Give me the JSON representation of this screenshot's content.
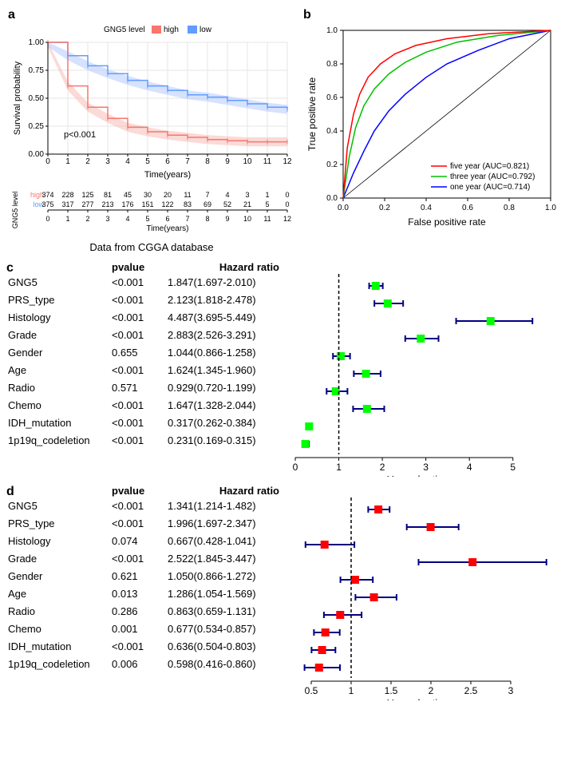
{
  "panel_a": {
    "label": "a",
    "legend_title": "GNG5 level",
    "legend": [
      "high",
      "low"
    ],
    "colors": {
      "high": "#f8766d",
      "low": "#619cff"
    },
    "band_colors": {
      "high": "#f8b5b0",
      "low": "#b0c6ff"
    },
    "ylabel": "Survival probability",
    "xlabel": "Time(years)",
    "pvalue": "p<0.001",
    "y_ticks": [
      "0.00",
      "0.25",
      "0.50",
      "0.75",
      "1.00"
    ],
    "x_ticks": [
      "0",
      "1",
      "2",
      "3",
      "4",
      "5",
      "6",
      "7",
      "8",
      "9",
      "10",
      "11",
      "12"
    ],
    "km_high": [
      1.0,
      0.61,
      0.42,
      0.32,
      0.24,
      0.2,
      0.17,
      0.15,
      0.13,
      0.12,
      0.11,
      0.11,
      0.11
    ],
    "km_low": [
      1.0,
      0.88,
      0.79,
      0.72,
      0.66,
      0.61,
      0.57,
      0.53,
      0.51,
      0.48,
      0.45,
      0.42,
      0.4
    ],
    "risk_ylabel": "GNG5 level",
    "risk_high": [
      "374",
      "228",
      "125",
      "81",
      "45",
      "30",
      "20",
      "11",
      "7",
      "4",
      "3",
      "1",
      "0"
    ],
    "risk_low": [
      "375",
      "317",
      "277",
      "213",
      "176",
      "151",
      "122",
      "83",
      "69",
      "52",
      "21",
      "5",
      "0"
    ],
    "caption": "Data from CGGA database"
  },
  "panel_b": {
    "label": "b",
    "ylabel": "True positive rate",
    "xlabel": "False positive rate",
    "ticks": [
      "0.0",
      "0.2",
      "0.4",
      "0.6",
      "0.8",
      "1.0"
    ],
    "legend": [
      {
        "label": "five year (AUC=0.821)",
        "color": "#ff0000"
      },
      {
        "label": "three year (AUC=0.792)",
        "color": "#00c000"
      },
      {
        "label": "one year (AUC=0.714)",
        "color": "#0000ff"
      }
    ],
    "roc_five": {
      "x": [
        0,
        0.02,
        0.05,
        0.08,
        0.12,
        0.18,
        0.25,
        0.35,
        0.5,
        0.7,
        1.0
      ],
      "y": [
        0,
        0.3,
        0.5,
        0.62,
        0.72,
        0.8,
        0.86,
        0.91,
        0.95,
        0.98,
        1.0
      ]
    },
    "roc_three": {
      "x": [
        0,
        0.03,
        0.06,
        0.1,
        0.15,
        0.22,
        0.3,
        0.4,
        0.55,
        0.75,
        1.0
      ],
      "y": [
        0,
        0.25,
        0.42,
        0.55,
        0.65,
        0.74,
        0.81,
        0.87,
        0.93,
        0.97,
        1.0
      ]
    },
    "roc_one": {
      "x": [
        0,
        0.05,
        0.1,
        0.15,
        0.22,
        0.3,
        0.4,
        0.5,
        0.65,
        0.8,
        1.0
      ],
      "y": [
        0,
        0.15,
        0.28,
        0.4,
        0.52,
        0.62,
        0.72,
        0.8,
        0.88,
        0.95,
        1.0
      ]
    }
  },
  "panel_c": {
    "label": "c",
    "headers": {
      "pvalue": "pvalue",
      "hr": "Hazard ratio"
    },
    "xlabel": "Hazard ratio",
    "xlim": [
      0,
      5.5
    ],
    "xticks": [
      0,
      1,
      2,
      3,
      4,
      5
    ],
    "ref_line": 1,
    "marker_color": "#00ff00",
    "line_color": "#000080",
    "rows": [
      {
        "var": "GNG5",
        "p": "<0.001",
        "hr_text": "1.847(1.697-2.010)",
        "lo": 1.697,
        "mid": 1.847,
        "hi": 2.01
      },
      {
        "var": "PRS_type",
        "p": "<0.001",
        "hr_text": "2.123(1.818-2.478)",
        "lo": 1.818,
        "mid": 2.123,
        "hi": 2.478
      },
      {
        "var": "Histology",
        "p": "<0.001",
        "hr_text": "4.487(3.695-5.449)",
        "lo": 3.695,
        "mid": 4.487,
        "hi": 5.449
      },
      {
        "var": "Grade",
        "p": "<0.001",
        "hr_text": "2.883(2.526-3.291)",
        "lo": 2.526,
        "mid": 2.883,
        "hi": 3.291
      },
      {
        "var": "Gender",
        "p": "0.655",
        "hr_text": "1.044(0.866-1.258)",
        "lo": 0.866,
        "mid": 1.044,
        "hi": 1.258
      },
      {
        "var": "Age",
        "p": "<0.001",
        "hr_text": "1.624(1.345-1.960)",
        "lo": 1.345,
        "mid": 1.624,
        "hi": 1.96
      },
      {
        "var": "Radio",
        "p": "0.571",
        "hr_text": "0.929(0.720-1.199)",
        "lo": 0.72,
        "mid": 0.929,
        "hi": 1.199
      },
      {
        "var": "Chemo",
        "p": "<0.001",
        "hr_text": "1.647(1.328-2.044)",
        "lo": 1.328,
        "mid": 1.647,
        "hi": 2.044
      },
      {
        "var": "IDH_mutation",
        "p": "<0.001",
        "hr_text": "0.317(0.262-0.384)",
        "lo": 0.262,
        "mid": 0.317,
        "hi": 0.384
      },
      {
        "var": "1p19q_codeletion",
        "p": "<0.001",
        "hr_text": "0.231(0.169-0.315)",
        "lo": 0.169,
        "mid": 0.231,
        "hi": 0.315
      }
    ]
  },
  "panel_d": {
    "label": "d",
    "headers": {
      "pvalue": "pvalue",
      "hr": "Hazard ratio"
    },
    "xlabel": "Hazard ratio",
    "xlim": [
      0.3,
      3.3
    ],
    "xticks": [
      0.5,
      1.0,
      1.5,
      2.0,
      2.5,
      3.0
    ],
    "ref_line": 1,
    "marker_color": "#ff0000",
    "line_color": "#000080",
    "rows": [
      {
        "var": "GNG5",
        "p": "<0.001",
        "hr_text": "1.341(1.214-1.482)",
        "lo": 1.214,
        "mid": 1.341,
        "hi": 1.482
      },
      {
        "var": "PRS_type",
        "p": "<0.001",
        "hr_text": "1.996(1.697-2.347)",
        "lo": 1.697,
        "mid": 1.996,
        "hi": 2.347
      },
      {
        "var": "Histology",
        "p": "0.074",
        "hr_text": "0.667(0.428-1.041)",
        "lo": 0.428,
        "mid": 0.667,
        "hi": 1.041
      },
      {
        "var": "Grade",
        "p": "<0.001",
        "hr_text": "2.522(1.845-3.447)",
        "lo": 1.845,
        "mid": 2.522,
        "hi": 3.447
      },
      {
        "var": "Gender",
        "p": "0.621",
        "hr_text": "1.050(0.866-1.272)",
        "lo": 0.866,
        "mid": 1.05,
        "hi": 1.272
      },
      {
        "var": "Age",
        "p": "0.013",
        "hr_text": "1.286(1.054-1.569)",
        "lo": 1.054,
        "mid": 1.286,
        "hi": 1.569
      },
      {
        "var": "Radio",
        "p": "0.286",
        "hr_text": "0.863(0.659-1.131)",
        "lo": 0.659,
        "mid": 0.863,
        "hi": 1.131
      },
      {
        "var": "Chemo",
        "p": "0.001",
        "hr_text": "0.677(0.534-0.857)",
        "lo": 0.534,
        "mid": 0.677,
        "hi": 0.857
      },
      {
        "var": "IDH_mutation",
        "p": "<0.001",
        "hr_text": "0.636(0.504-0.803)",
        "lo": 0.504,
        "mid": 0.636,
        "hi": 0.803
      },
      {
        "var": "1p19q_codeletion",
        "p": "0.006",
        "hr_text": "0.598(0.416-0.860)",
        "lo": 0.416,
        "mid": 0.598,
        "hi": 0.86
      }
    ]
  }
}
